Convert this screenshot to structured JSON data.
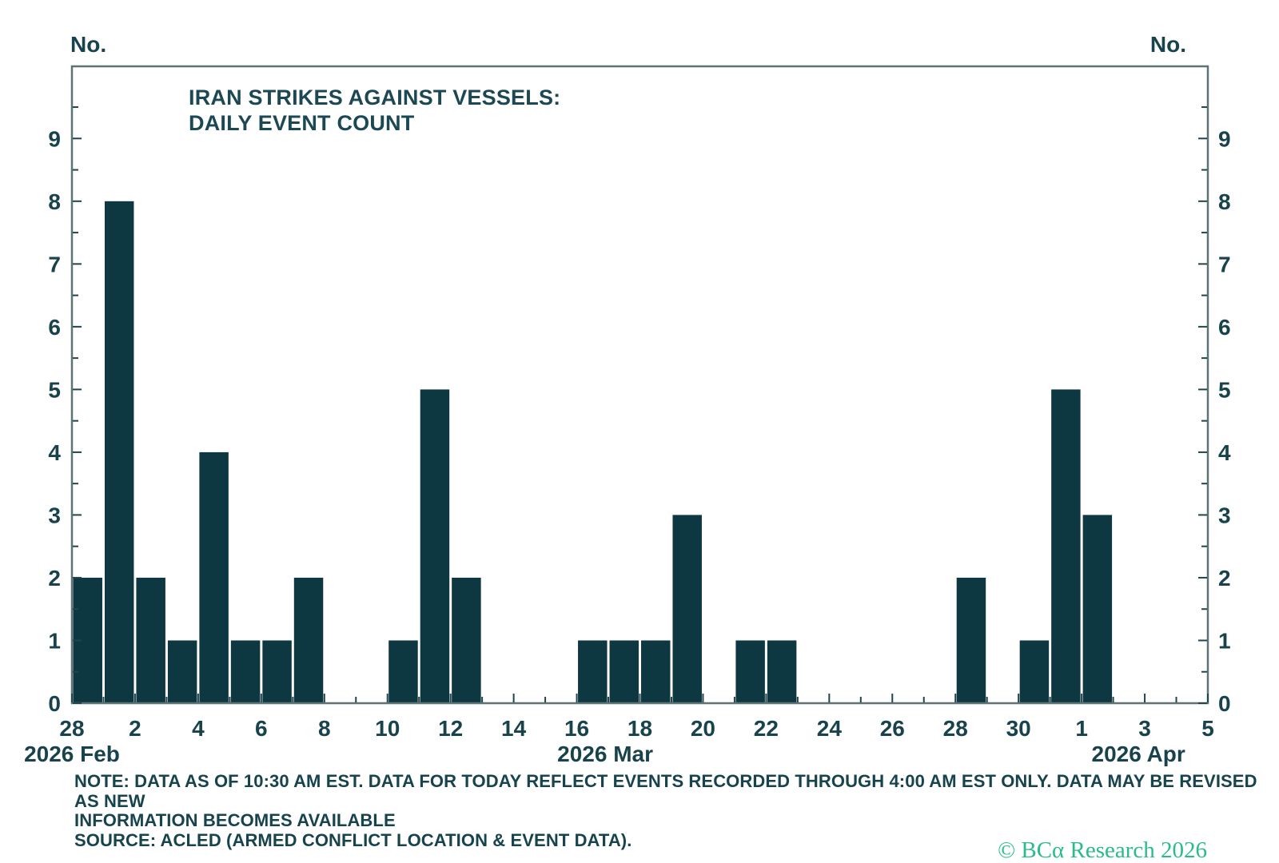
{
  "chart_data": {
    "type": "bar",
    "title_lines": [
      "IRAN STRIKES AGAINST VESSELS:",
      "DAILY EVENT COUNT"
    ],
    "unit_label_left": "No.",
    "unit_label_right": "No.",
    "dates": [
      "2026-02-28",
      "2026-03-01",
      "2026-03-02",
      "2026-03-03",
      "2026-03-04",
      "2026-03-05",
      "2026-03-06",
      "2026-03-07",
      "2026-03-08",
      "2026-03-09",
      "2026-03-10",
      "2026-03-11",
      "2026-03-12",
      "2026-03-13",
      "2026-03-14",
      "2026-03-15",
      "2026-03-16",
      "2026-03-17",
      "2026-03-18",
      "2026-03-19",
      "2026-03-20",
      "2026-03-21",
      "2026-03-22",
      "2026-03-23",
      "2026-03-24",
      "2026-03-25",
      "2026-03-26",
      "2026-03-27",
      "2026-03-28",
      "2026-03-29",
      "2026-03-30",
      "2026-03-31",
      "2026-04-01",
      "2026-04-02",
      "2026-04-03",
      "2026-04-04"
    ],
    "values": [
      2,
      8,
      2,
      1,
      4,
      1,
      1,
      2,
      0,
      0,
      1,
      5,
      2,
      0,
      0,
      0,
      1,
      1,
      1,
      3,
      0,
      1,
      1,
      0,
      0,
      0,
      0,
      0,
      2,
      0,
      1,
      5,
      3,
      0,
      0,
      0
    ],
    "ylim": [
      0,
      10.15
    ],
    "y_ticks": [
      0,
      1,
      2,
      3,
      4,
      5,
      6,
      7,
      8,
      9
    ],
    "y_minor_step": 0.5,
    "xlim_days": [
      0,
      36
    ],
    "x_tick_labels": [
      {
        "day": 0,
        "label": "28"
      },
      {
        "day": 2,
        "label": "2"
      },
      {
        "day": 4,
        "label": "4"
      },
      {
        "day": 6,
        "label": "6"
      },
      {
        "day": 8,
        "label": "8"
      },
      {
        "day": 10,
        "label": "10"
      },
      {
        "day": 12,
        "label": "12"
      },
      {
        "day": 14,
        "label": "14"
      },
      {
        "day": 16,
        "label": "16"
      },
      {
        "day": 18,
        "label": "18"
      },
      {
        "day": 20,
        "label": "20"
      },
      {
        "day": 22,
        "label": "22"
      },
      {
        "day": 24,
        "label": "24"
      },
      {
        "day": 26,
        "label": "26"
      },
      {
        "day": 28,
        "label": "28"
      },
      {
        "day": 30,
        "label": "30"
      },
      {
        "day": 32,
        "label": "1"
      },
      {
        "day": 34,
        "label": "3"
      },
      {
        "day": 36,
        "label": "5"
      }
    ],
    "month_labels": [
      {
        "label": "2026 Feb",
        "day": 0
      },
      {
        "label": "2026 Mar",
        "day": 16.9
      },
      {
        "label": "2026 Apr",
        "day": 33.8
      }
    ],
    "grid": false,
    "legend": "none",
    "bar_color": "#0e3841",
    "frame_color": "#5e7376",
    "tick_color": "#21454c",
    "text_color": "#18434d"
  },
  "footer": {
    "note_lines": [
      "NOTE: DATA AS OF 10:30 AM EST. DATA FOR TODAY REFLECT EVENTS RECORDED THROUGH 4:00 AM EST ONLY. DATA MAY BE REVISED AS NEW",
      "INFORMATION BECOMES AVAILABLE"
    ],
    "source": "SOURCE: ACLED (ARMED CONFLICT LOCATION & EVENT DATA).",
    "copyright": "© BCα Research 2026",
    "copyright_color": "#2abb8d"
  }
}
